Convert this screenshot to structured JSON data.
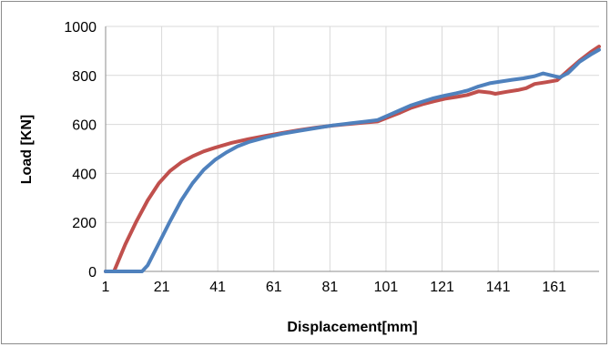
{
  "chart_data": {
    "type": "line",
    "title": "",
    "xlabel": "Displacement[mm]",
    "ylabel": "Load [KN]",
    "xlim": [
      1,
      177
    ],
    "ylim": [
      0,
      1000
    ],
    "x_ticks": [
      1,
      21,
      41,
      61,
      81,
      101,
      121,
      141,
      161
    ],
    "y_ticks": [
      0,
      200,
      400,
      600,
      800,
      1000
    ],
    "grid": "horizontal-and-vertical",
    "legend": "none",
    "series": [
      {
        "color": "#c0504d",
        "points": [
          [
            1,
            0
          ],
          [
            4,
            0
          ],
          [
            8,
            110
          ],
          [
            12,
            205
          ],
          [
            16,
            290
          ],
          [
            20,
            360
          ],
          [
            24,
            410
          ],
          [
            28,
            445
          ],
          [
            32,
            470
          ],
          [
            36,
            490
          ],
          [
            40,
            505
          ],
          [
            46,
            525
          ],
          [
            52,
            540
          ],
          [
            58,
            553
          ],
          [
            64,
            565
          ],
          [
            70,
            577
          ],
          [
            76,
            587
          ],
          [
            82,
            595
          ],
          [
            88,
            602
          ],
          [
            94,
            608
          ],
          [
            98,
            612
          ],
          [
            102,
            630
          ],
          [
            106,
            648
          ],
          [
            110,
            668
          ],
          [
            114,
            682
          ],
          [
            118,
            694
          ],
          [
            122,
            705
          ],
          [
            126,
            712
          ],
          [
            130,
            720
          ],
          [
            134,
            735
          ],
          [
            138,
            730
          ],
          [
            140,
            725
          ],
          [
            144,
            733
          ],
          [
            148,
            740
          ],
          [
            151,
            748
          ],
          [
            154,
            765
          ],
          [
            158,
            772
          ],
          [
            162,
            780
          ],
          [
            166,
            820
          ],
          [
            170,
            860
          ],
          [
            174,
            895
          ],
          [
            177,
            918
          ]
        ]
      },
      {
        "color": "#4f81bd",
        "points": [
          [
            1,
            0
          ],
          [
            10,
            0
          ],
          [
            14,
            0
          ],
          [
            16,
            25
          ],
          [
            20,
            115
          ],
          [
            24,
            205
          ],
          [
            28,
            290
          ],
          [
            32,
            360
          ],
          [
            36,
            415
          ],
          [
            40,
            455
          ],
          [
            44,
            485
          ],
          [
            48,
            510
          ],
          [
            52,
            528
          ],
          [
            58,
            547
          ],
          [
            64,
            562
          ],
          [
            70,
            574
          ],
          [
            76,
            585
          ],
          [
            82,
            596
          ],
          [
            88,
            604
          ],
          [
            94,
            612
          ],
          [
            98,
            618
          ],
          [
            102,
            638
          ],
          [
            106,
            658
          ],
          [
            110,
            678
          ],
          [
            114,
            693
          ],
          [
            118,
            707
          ],
          [
            122,
            718
          ],
          [
            126,
            727
          ],
          [
            130,
            738
          ],
          [
            134,
            755
          ],
          [
            138,
            768
          ],
          [
            142,
            775
          ],
          [
            146,
            782
          ],
          [
            150,
            788
          ],
          [
            154,
            797
          ],
          [
            157,
            808
          ],
          [
            160,
            800
          ],
          [
            163,
            792
          ],
          [
            166,
            810
          ],
          [
            170,
            855
          ],
          [
            174,
            885
          ],
          [
            177,
            905
          ]
        ]
      }
    ]
  }
}
